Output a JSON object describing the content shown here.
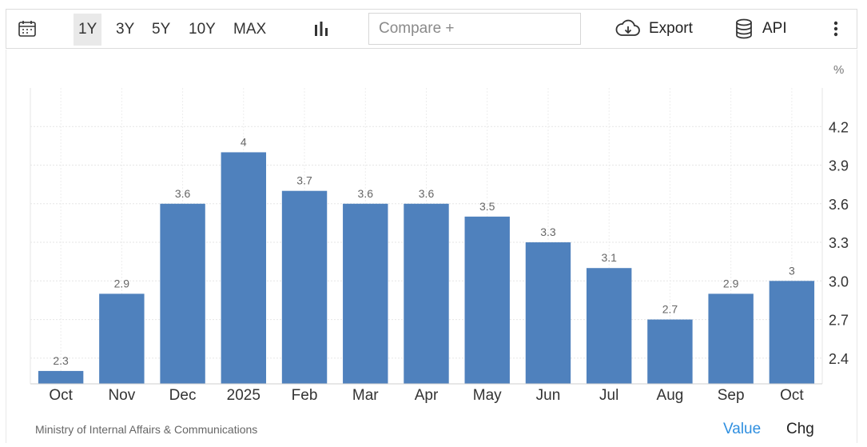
{
  "toolbar": {
    "calendar_icon": "calendar-icon",
    "ranges": [
      "1Y",
      "3Y",
      "5Y",
      "10Y",
      "MAX"
    ],
    "active_range": "1Y",
    "chart_type_icon": "bar-chart-icon",
    "compare_placeholder": "Compare +",
    "export_icon": "cloud-download-icon",
    "export_label": "Export",
    "api_icon": "database-icon",
    "api_label": "API",
    "more_icon": "vertical-dots-icon"
  },
  "chart_data": {
    "type": "bar",
    "categories": [
      "Oct",
      "Nov",
      "Dec",
      "2025",
      "Feb",
      "Mar",
      "Apr",
      "May",
      "Jun",
      "Jul",
      "Aug",
      "Sep",
      "Oct"
    ],
    "values": [
      2.3,
      2.9,
      3.6,
      4,
      3.7,
      3.6,
      3.6,
      3.5,
      3.3,
      3.1,
      2.7,
      2.9,
      3
    ],
    "data_labels": [
      "2.3",
      "2.9",
      "3.6",
      "4",
      "3.7",
      "3.6",
      "3.6",
      "3.5",
      "3.3",
      "3.1",
      "2.7",
      "2.9",
      "3"
    ],
    "unit": "%",
    "yticks": [
      2.4,
      2.7,
      3.0,
      3.3,
      3.6,
      3.9,
      4.2
    ],
    "ytick_labels": [
      "2.4",
      "2.7",
      "3.0",
      "3.3",
      "3.6",
      "3.9",
      "4.2"
    ],
    "ylim": [
      2.2,
      4.5
    ],
    "y_axis_side": "right",
    "bar_color": "#4f81bd",
    "grid": true
  },
  "footer": {
    "source": "Ministry of Internal Affairs & Communications",
    "value_label": "Value",
    "chg_label": "Chg",
    "value_color": "#2f8fe0"
  }
}
